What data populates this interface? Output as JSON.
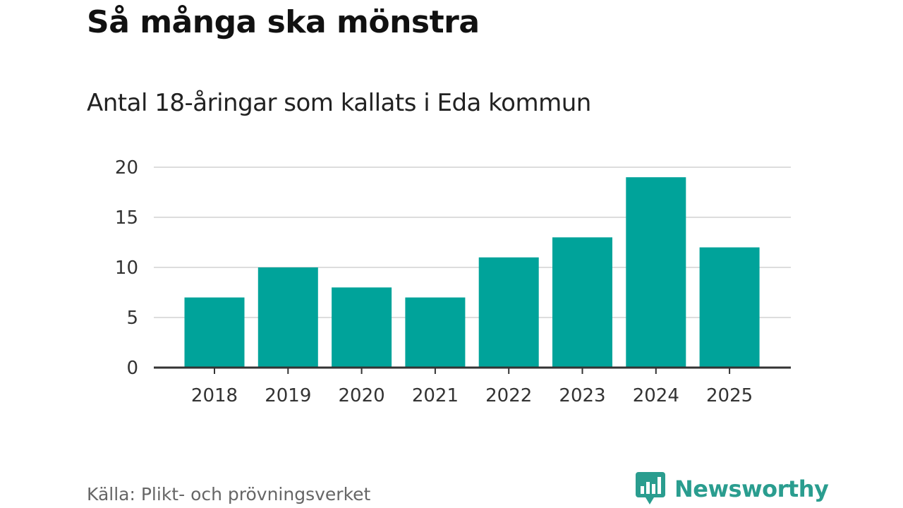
{
  "header": {
    "title": "Så många ska mönstra",
    "subtitle": "Antal 18-åringar som kallats i Eda kommun"
  },
  "footer": {
    "source": "Källa: Plikt- och prövningsverket",
    "brand": "Newsworthy"
  },
  "colors": {
    "bar": "#00a39a",
    "grid": "#dddddd",
    "axis": "#333333",
    "brand": "#2a9d8f"
  },
  "chart_data": {
    "type": "bar",
    "categories": [
      "2018",
      "2019",
      "2020",
      "2021",
      "2022",
      "2023",
      "2024",
      "2025"
    ],
    "values": [
      7,
      10,
      8,
      7,
      11,
      13,
      19,
      12
    ],
    "yticks": [
      0,
      5,
      10,
      15,
      20
    ],
    "ylim": [
      0,
      20
    ],
    "grid": true,
    "legend": "none"
  }
}
